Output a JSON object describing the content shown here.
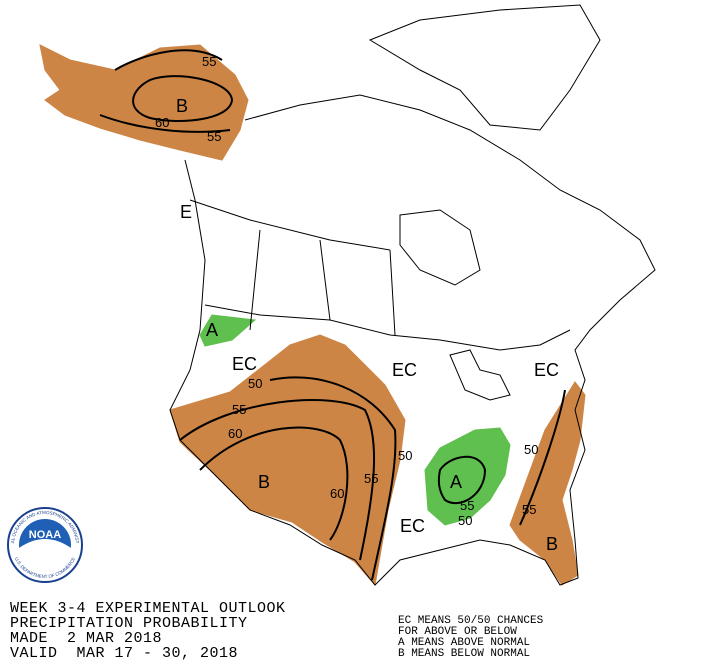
{
  "title_lines": [
    "WEEK 3-4 EXPERIMENTAL OUTLOOK",
    "PRECIPITATION PROBABILITY",
    "MADE  2 MAR 2018",
    "VALID  MAR 17 - 30, 2018"
  ],
  "legend_lines": [
    "EC MEANS 50/50 CHANCES",
    "FOR ABOVE OR BELOW",
    "A MEANS ABOVE NORMAL",
    "B MEANS BELOW NORMAL"
  ],
  "logo": {
    "text": "NOAA",
    "ring_top": "NATIONAL OCEANIC AND ATMOSPHERIC ADMINISTRATION",
    "ring_bottom": "U.S. DEPARTMENT OF COMMERCE"
  },
  "map_labels": [
    "B",
    "55",
    "60",
    "55",
    "E",
    "A",
    "EC",
    "50",
    "55",
    "60",
    "B",
    "60",
    "55",
    "EC",
    "50",
    "A",
    "55",
    "50",
    "EC",
    "50",
    "EC",
    "55",
    "B"
  ]
}
